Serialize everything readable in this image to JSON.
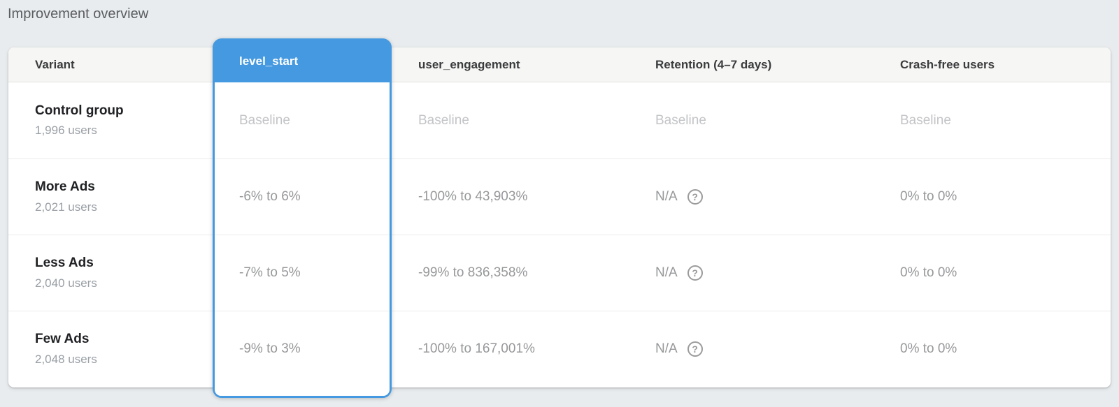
{
  "page": {
    "title": "Improvement overview"
  },
  "theme": {
    "accent_blue": "#4499e0",
    "page_background": "#e9ecee",
    "card_background": "#ffffff",
    "header_background": "#f6f6f4",
    "muted_text": "#97989a",
    "baseline_text": "#c3c4c7"
  },
  "table": {
    "columns": [
      {
        "id": "variant",
        "label": "Variant",
        "highlighted": false
      },
      {
        "id": "level_start",
        "label": "level_start",
        "highlighted": true
      },
      {
        "id": "user_engagement",
        "label": "user_engagement",
        "highlighted": false
      },
      {
        "id": "retention",
        "label": "Retention (4–7 days)",
        "highlighted": false
      },
      {
        "id": "crash_free_users",
        "label": "Crash-free users",
        "highlighted": false
      }
    ],
    "rows": [
      {
        "variant": "Control group",
        "users": "1,996 users",
        "is_baseline": true,
        "level_start": "Baseline",
        "user_engagement": "Baseline",
        "retention": "Baseline",
        "has_retention_help": false,
        "crash_free_users": "Baseline"
      },
      {
        "variant": "More Ads",
        "users": "2,021 users",
        "is_baseline": false,
        "level_start": "-6% to 6%",
        "user_engagement": "-100% to 43,903%",
        "retention": "N/A",
        "has_retention_help": true,
        "crash_free_users": "0% to 0%"
      },
      {
        "variant": "Less Ads",
        "users": "2,040 users",
        "is_baseline": false,
        "level_start": "-7% to 5%",
        "user_engagement": "-99% to 836,358%",
        "retention": "N/A",
        "has_retention_help": true,
        "crash_free_users": "0% to 0%"
      },
      {
        "variant": "Few Ads",
        "users": "2,048 users",
        "is_baseline": false,
        "level_start": "-9% to 3%",
        "user_engagement": "-100% to 167,001%",
        "retention": "N/A",
        "has_retention_help": true,
        "crash_free_users": "0% to 0%"
      }
    ]
  },
  "icons": {
    "help_icon": "?"
  }
}
